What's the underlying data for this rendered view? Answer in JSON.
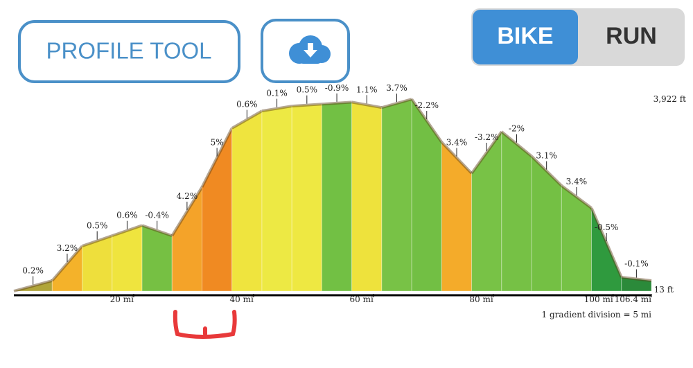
{
  "ui": {
    "profile_button": "PROFILE TOOL",
    "toggle": {
      "options": [
        "BIKE",
        "RUN"
      ],
      "selected": "BIKE"
    }
  },
  "chart_data": {
    "type": "area",
    "x": [
      0,
      6.4,
      11.4,
      16.4,
      21.4,
      26.4,
      31.4,
      36.4,
      41.4,
      46.4,
      51.4,
      56.4,
      61.4,
      66.4,
      71.4,
      76.4,
      81.4,
      86.4,
      91.4,
      96.4,
      101.4,
      106.4
    ],
    "values": [
      13,
      225,
      930,
      1140,
      1350,
      1140,
      2130,
      3330,
      3680,
      3780,
      3820,
      3860,
      3750,
      3922,
      3045,
      2410,
      3260,
      2760,
      2160,
      1705,
      295,
      225
    ],
    "segment_labels": [
      "0.2%",
      "3.2%",
      "0.5%",
      "0.6%",
      "-0.4%",
      "4.2%",
      "5%",
      "0.6%",
      "0.1%",
      "0.5%",
      "-0.9%",
      "1.1%",
      "3.7%",
      "-2.2%",
      "3.4%",
      "-3.2%",
      "-2%",
      "3.1%",
      "3.4%",
      "-0.5%",
      "-0.1%"
    ],
    "segment_colors": [
      "#b0a53a",
      "#f4b22a",
      "#eedf3c",
      "#efe43e",
      "#76c043",
      "#f4a329",
      "#f08a22",
      "#efe43e",
      "#ede944",
      "#eee842",
      "#72c044",
      "#eee23c",
      "#78c246",
      "#72bf44",
      "#f4ab2a",
      "#78c246",
      "#76c145",
      "#74c044",
      "#76c246",
      "#2f9a3e",
      "#2b8a3a"
    ],
    "xlim": [
      0,
      106.4
    ],
    "ylim": [
      13,
      3922
    ],
    "xticks": [
      {
        "value": 20,
        "label": "20 mi"
      },
      {
        "value": 40,
        "label": "40 mi"
      },
      {
        "value": 60,
        "label": "60 mi"
      },
      {
        "value": 80,
        "label": "80 mi"
      },
      {
        "value": 100,
        "label": "100 mi"
      },
      {
        "value": 106.4,
        "label": "106.4 mi"
      }
    ],
    "y_top_label": "3,922 ft",
    "y_bottom_label": "13 ft",
    "note": "1 gradient division = 5 mi"
  }
}
